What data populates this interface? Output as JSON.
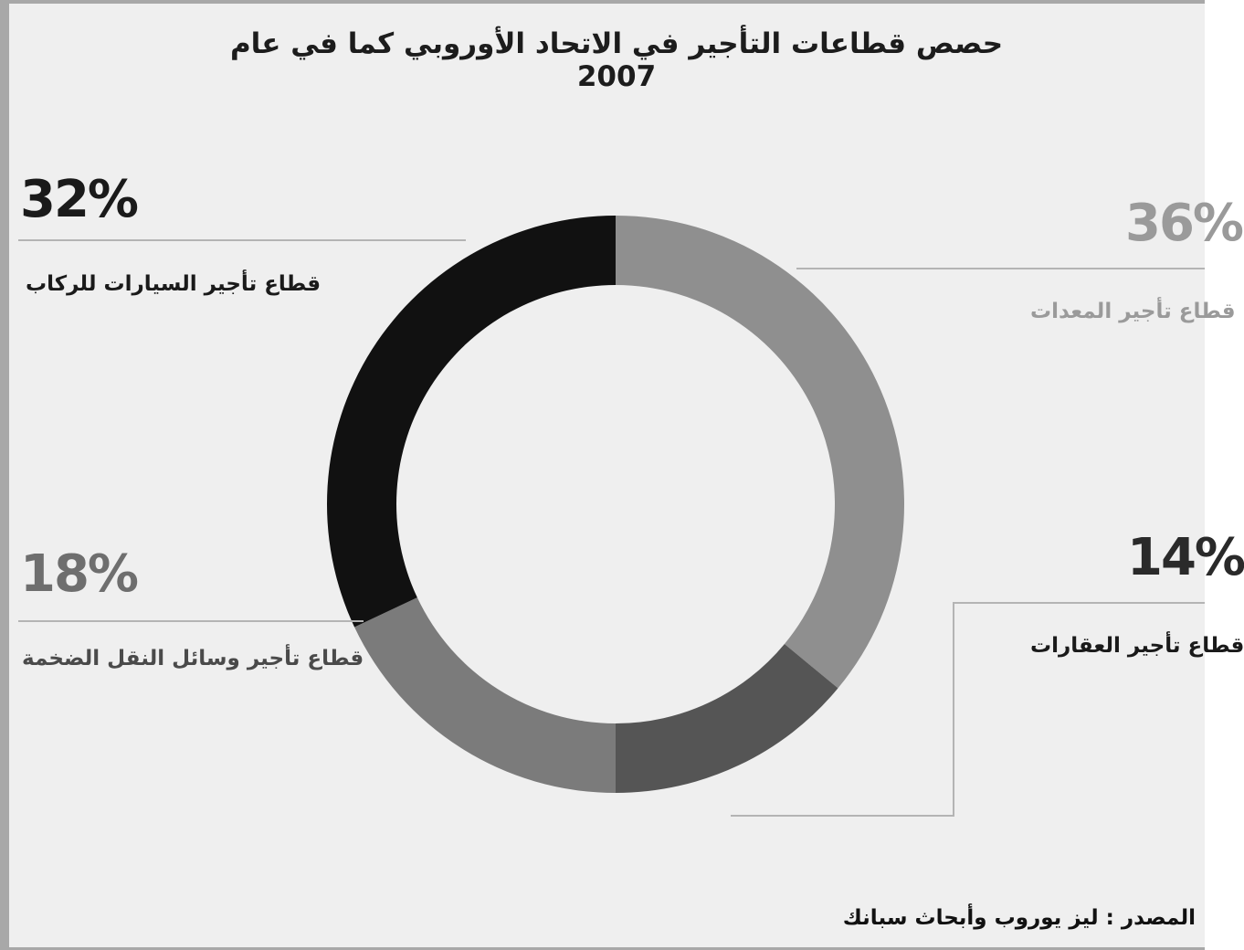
{
  "chart_data": {
    "type": "pie",
    "style": "donut",
    "title": "حصص قطاعات التأجير في الاتحاد الأوروبي كما في عام 2007",
    "source": "المصدر : ليز يوروب وأبحاث سبانك",
    "slices": [
      {
        "label": "قطاع تأجير المعدات",
        "value": 36,
        "value_label": "36%",
        "color": "#8f8f8f",
        "label_color": "#9a9a9a",
        "label_side": "right"
      },
      {
        "label": "قطاع تأجير العقارات",
        "value": 14,
        "value_label": "14%",
        "color": "#555555",
        "label_color": "#2a2a2a",
        "label_side": "right"
      },
      {
        "label": "قطاع تأجير وسائل النقل الضخمة",
        "value": 18,
        "value_label": "18%",
        "color": "#7b7b7b",
        "label_color": "#6e6e6e",
        "label_side": "left"
      },
      {
        "label": "قطاع تأجير السيارات للركاب",
        "value": 32,
        "value_label": "32%",
        "color": "#111111",
        "label_color": "#1a1a1a",
        "label_side": "left"
      }
    ]
  }
}
